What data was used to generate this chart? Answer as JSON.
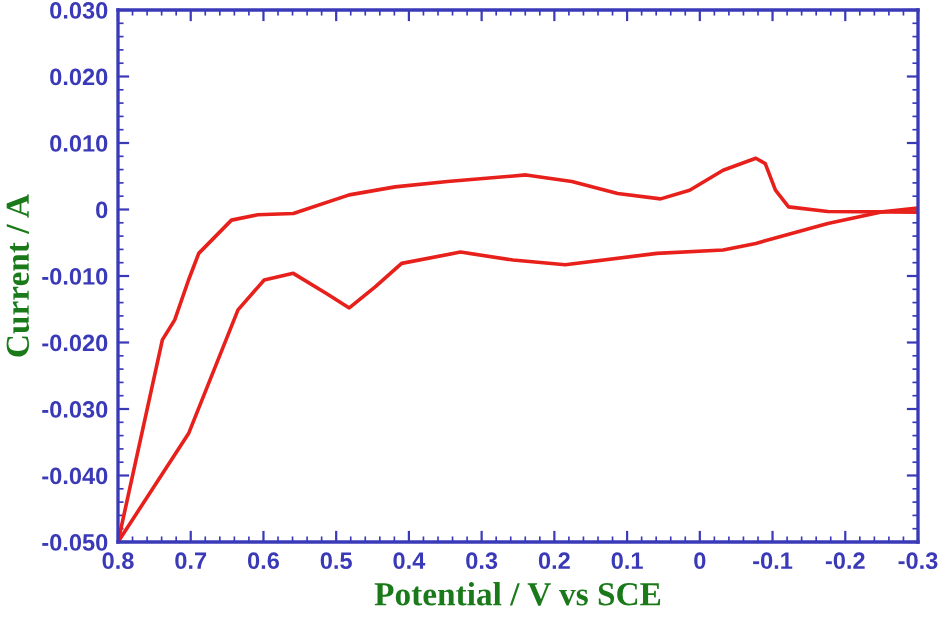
{
  "chart_data": {
    "type": "line",
    "xlabel": "Potential / V vs SCE",
    "ylabel": "Current / A",
    "xlim": [
      0.8,
      -0.3
    ],
    "ylim": [
      -0.05,
      0.03
    ],
    "xticks": [
      0.8,
      0.7,
      0.6,
      0.5,
      0.4,
      0.3,
      0.2,
      0.1,
      0,
      -0.1,
      -0.2,
      -0.3
    ],
    "yticks": [
      {
        "value": 0.03,
        "label": "0.030"
      },
      {
        "value": 0.02,
        "label": "0.020"
      },
      {
        "value": 0.01,
        "label": "0.010"
      },
      {
        "value": 0,
        "label": "0"
      },
      {
        "value": -0.01,
        "label": "-0.010"
      },
      {
        "value": -0.02,
        "label": "-0.020"
      },
      {
        "value": -0.03,
        "label": "-0.030"
      },
      {
        "value": -0.04,
        "label": "-0.040"
      },
      {
        "value": -0.05,
        "label": "-0.050"
      }
    ],
    "grid": false,
    "legend": false,
    "marker": "none",
    "line_style": "solid",
    "series": [
      {
        "color": "#e8201c",
        "x": [
          0.8,
          0.739,
          0.722,
          0.703,
          0.689,
          0.644,
          0.608,
          0.559,
          0.482,
          0.419,
          0.347,
          0.239,
          0.176,
          0.113,
          0.054,
          0.014,
          -0.032,
          -0.077,
          -0.09,
          -0.104,
          -0.122,
          -0.176,
          -0.297
        ],
        "values": [
          -0.05,
          -0.0196,
          -0.0166,
          -0.0106,
          -0.0066,
          -0.0016,
          -0.0008,
          -0.0006,
          0.0022,
          0.0034,
          0.0042,
          0.0052,
          0.0042,
          0.0024,
          0.0016,
          0.0029,
          0.0059,
          0.0077,
          0.0069,
          0.0029,
          0.0004,
          -0.0003,
          -0.0004
        ]
      },
      {
        "color": "#e8201c",
        "x": [
          -0.297,
          -0.248,
          -0.176,
          -0.077,
          -0.032,
          0.059,
          0.185,
          0.257,
          0.329,
          0.41,
          0.446,
          0.482,
          0.514,
          0.559,
          0.599,
          0.635,
          0.703,
          0.8
        ],
        "values": [
          0.0002,
          -0.0004,
          -0.0021,
          -0.0051,
          -0.0061,
          -0.0066,
          -0.0083,
          -0.0076,
          -0.0064,
          -0.0081,
          -0.0116,
          -0.0148,
          -0.0126,
          -0.0096,
          -0.0106,
          -0.0151,
          -0.0337,
          -0.05
        ]
      }
    ]
  }
}
